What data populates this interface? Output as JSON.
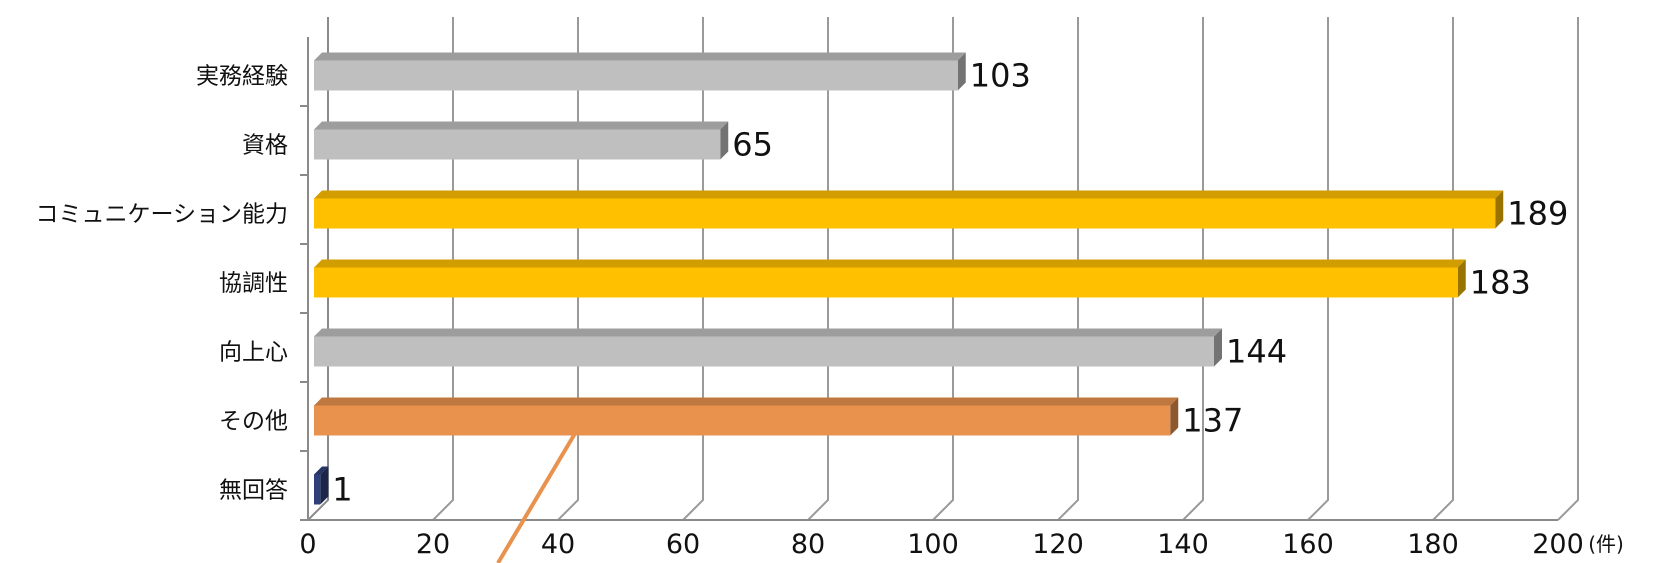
{
  "chart_data": {
    "type": "bar",
    "orientation": "horizontal",
    "categories": [
      "実務経験",
      "資格",
      "コミュニケーション能力",
      "協調性",
      "向上心",
      "その他",
      "無回答"
    ],
    "values": [
      103,
      65,
      189,
      183,
      144,
      137,
      1
    ],
    "bar_colors": [
      "#bfbfbf",
      "#bfbfbf",
      "#ffc000",
      "#ffc000",
      "#bfbfbf",
      "#e8924e",
      "#2e3f7a"
    ],
    "xlim": [
      0,
      200
    ],
    "xticks": [
      0,
      20,
      40,
      60,
      80,
      100,
      120,
      140,
      160,
      180,
      200
    ],
    "x_unit": "(件)",
    "grid": true,
    "style": "3d"
  }
}
